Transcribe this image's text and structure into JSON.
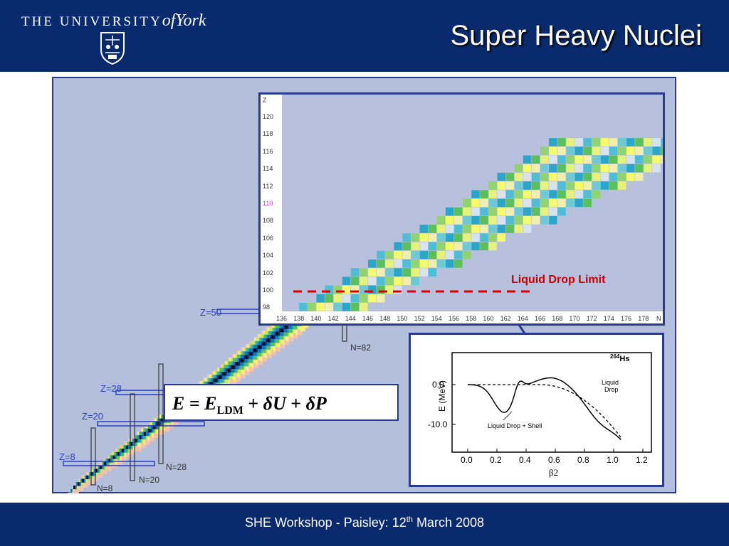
{
  "header": {
    "logo_text_the": "THE",
    "logo_text_university": "UNIVERSITY",
    "logo_text_of": "of",
    "logo_text_york": "York",
    "title": "Super Heavy Nuclei",
    "background_color": "#0a2a6e"
  },
  "footer": {
    "text_before": "SHE Workshop - Paisley: 12",
    "text_sup": "th",
    "text_after": " March 2008"
  },
  "nuclide_chart": {
    "z_labels": [
      "Z=50",
      "Z=28",
      "Z=20",
      "Z=8"
    ],
    "n_labels": [
      "N=82",
      "N=28",
      "N=20",
      "N=8"
    ]
  },
  "zoom_chart": {
    "z_axis_title": "Z",
    "z_ticks": [
      "120",
      "118",
      "116",
      "114",
      "112",
      "110",
      "108",
      "106",
      "104",
      "102",
      "100",
      "98"
    ],
    "n_axis_title": "N",
    "n_ticks": [
      "136",
      "138",
      "140",
      "142",
      "144",
      "146",
      "148",
      "150",
      "152",
      "154",
      "156",
      "158",
      "160",
      "162",
      "164",
      "166",
      "168",
      "170",
      "172",
      "174",
      "176",
      "178"
    ],
    "limit_label": "Liquid Drop Limit",
    "limit_color": "#cc0000"
  },
  "equation": {
    "e": "E",
    "equals": " = ",
    "e2": "E",
    "ldm_sub": "LDM",
    "plus1": " + ",
    "dU": "δU",
    "plus2": " + ",
    "dP": "δP"
  },
  "pes_chart": {
    "nucleus_mass": "264",
    "nucleus_symbol": "Hs",
    "ylabel": "E (MeV)",
    "xlabel": "β2",
    "y_ticks": [
      "0.0",
      "-10.0"
    ],
    "x_ticks": [
      "0.0",
      "0.2",
      "0.4",
      "0.6",
      "0.8",
      "1.0",
      "1.2"
    ],
    "curve_label_ld1": "Liquid",
    "curve_label_ld2": "Drop",
    "curve_label_shell": "Liquid Drop + Shell"
  }
}
